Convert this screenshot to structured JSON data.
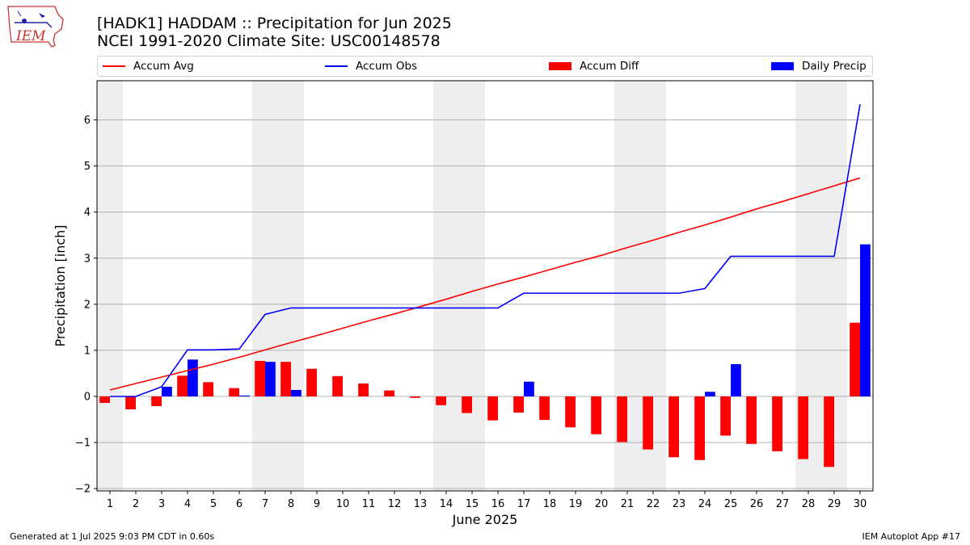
{
  "header": {
    "logo_text": "IEM",
    "title_line1": "[HADK1] HADDAM :: Precipitation for Jun 2025",
    "title_line2": "NCEI 1991-2020 Climate Site: USC00148578"
  },
  "legend": {
    "items": [
      {
        "label": "Accum Avg",
        "kind": "line",
        "color": "#ff0000"
      },
      {
        "label": "Accum Obs",
        "kind": "line",
        "color": "#0000ff"
      },
      {
        "label": "Accum Diff",
        "kind": "patch",
        "color": "#ff0000"
      },
      {
        "label": "Daily Precip",
        "kind": "patch",
        "color": "#0000ff"
      }
    ]
  },
  "footer": {
    "left": "Generated at 1 Jul 2025 9:03 PM CDT in 0.60s",
    "right": "IEM Autoplot App #17"
  },
  "chart_data": {
    "type": "bar",
    "xlabel": "June 2025",
    "ylabel": "Precipitation [inch]",
    "xlim": [
      0.5,
      30.5
    ],
    "ylim": [
      -2.05,
      6.85
    ],
    "yticks": [
      -2,
      -1,
      0,
      1,
      2,
      3,
      4,
      5,
      6
    ],
    "ytick_labels": [
      "−2",
      "−1",
      "0",
      "1",
      "2",
      "3",
      "4",
      "5",
      "6"
    ],
    "days": [
      1,
      2,
      3,
      4,
      5,
      6,
      7,
      8,
      9,
      10,
      11,
      12,
      13,
      14,
      15,
      16,
      17,
      18,
      19,
      20,
      21,
      22,
      23,
      24,
      25,
      26,
      27,
      28,
      29,
      30
    ],
    "weekend_bands": [
      [
        0.5,
        1.5
      ],
      [
        6.5,
        8.5
      ],
      [
        13.5,
        15.5
      ],
      [
        20.5,
        22.5
      ],
      [
        27.5,
        29.5
      ]
    ],
    "grid": "horizontal",
    "colors": {
      "avg": "#ff0000",
      "obs": "#0000ff",
      "weekend": "#eeeeee",
      "grid": "#b0b0b0"
    },
    "series": [
      {
        "name": "Accum Avg",
        "kind": "line",
        "values": [
          0.14,
          0.28,
          0.42,
          0.56,
          0.7,
          0.85,
          1.01,
          1.17,
          1.32,
          1.48,
          1.64,
          1.79,
          1.95,
          2.11,
          2.28,
          2.44,
          2.59,
          2.75,
          2.91,
          3.06,
          3.23,
          3.39,
          3.56,
          3.72,
          3.89,
          4.07,
          4.23,
          4.4,
          4.57,
          4.74
        ]
      },
      {
        "name": "Accum Obs",
        "kind": "line",
        "values": [
          0.0,
          0.0,
          0.21,
          1.01,
          1.01,
          1.03,
          1.78,
          1.92,
          1.92,
          1.92,
          1.92,
          1.92,
          1.92,
          1.92,
          1.92,
          1.92,
          2.24,
          2.24,
          2.24,
          2.24,
          2.24,
          2.24,
          2.24,
          2.34,
          3.04,
          3.04,
          3.04,
          3.04,
          3.04,
          6.34
        ]
      },
      {
        "name": "Accum Diff",
        "kind": "bar",
        "values": [
          -0.14,
          -0.28,
          -0.21,
          0.45,
          0.31,
          0.18,
          0.77,
          0.75,
          0.6,
          0.44,
          0.28,
          0.13,
          -0.03,
          -0.19,
          -0.36,
          -0.52,
          -0.35,
          -0.51,
          -0.67,
          -0.82,
          -0.99,
          -1.15,
          -1.32,
          -1.38,
          -0.85,
          -1.03,
          -1.19,
          -1.36,
          -1.53,
          1.6
        ]
      },
      {
        "name": "Daily Precip",
        "kind": "bar",
        "values": [
          0.0,
          0.0,
          0.21,
          0.8,
          0.0,
          0.02,
          0.75,
          0.14,
          0.0,
          0.0,
          0.0,
          0.0,
          0.0,
          0.0,
          0.0,
          0.0,
          0.32,
          0.0,
          0.0,
          0.0,
          0.0,
          0.0,
          0.0,
          0.1,
          0.7,
          0.0,
          0.0,
          0.0,
          0.0,
          3.3
        ]
      }
    ]
  }
}
